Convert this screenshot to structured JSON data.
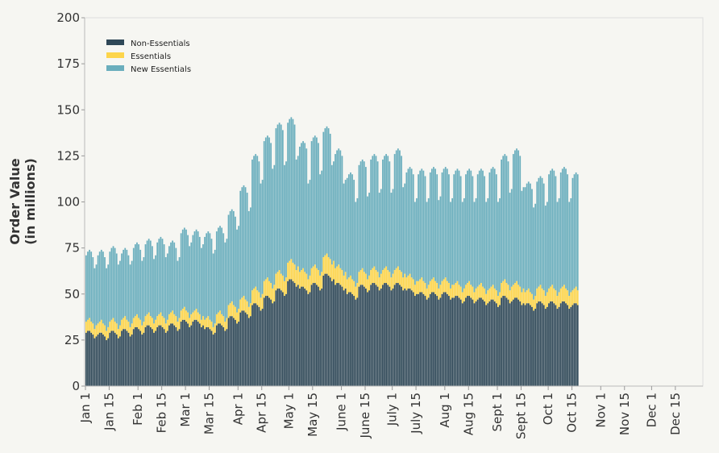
{
  "chart_data": {
    "type": "bar",
    "stacked": true,
    "title": "",
    "xlabel": "",
    "ylabel": [
      "Order Value",
      "(in millions)"
    ],
    "ylim": [
      0,
      200
    ],
    "yticks": [
      0,
      25,
      50,
      75,
      100,
      125,
      150,
      175,
      200
    ],
    "x_start": "Jan 1",
    "x_end": "Dec 31",
    "xticks": [
      {
        "label": "Jan 1",
        "day": 1
      },
      {
        "label": "Jan 15",
        "day": 15
      },
      {
        "label": "Feb 1",
        "day": 32
      },
      {
        "label": "Feb 15",
        "day": 46
      },
      {
        "label": "Mar 1",
        "day": 60
      },
      {
        "label": "Mar 15",
        "day": 74
      },
      {
        "label": "Apr 1",
        "day": 91
      },
      {
        "label": "Apr 15",
        "day": 105
      },
      {
        "label": "May 1",
        "day": 121
      },
      {
        "label": "May 15",
        "day": 135
      },
      {
        "label": "June 1",
        "day": 152
      },
      {
        "label": "June 15",
        "day": 166
      },
      {
        "label": "July 1",
        "day": 182
      },
      {
        "label": "July 15",
        "day": 196
      },
      {
        "label": "Aug 1",
        "day": 213
      },
      {
        "label": "Aug 15",
        "day": 227
      },
      {
        "label": "Sept 1",
        "day": 244
      },
      {
        "label": "Sept 15",
        "day": 258
      },
      {
        "label": "Oct 1",
        "day": 274
      },
      {
        "label": "Oct 15",
        "day": 288
      },
      {
        "label": "Nov 1",
        "day": 305
      },
      {
        "label": "Nov 15",
        "day": 319
      },
      {
        "label": "Dec 1",
        "day": 335
      },
      {
        "label": "Dec 15",
        "day": 349
      }
    ],
    "grid": false,
    "legend_placement": "top-left",
    "series": [
      {
        "name": "Non-Essentials",
        "color": "#2f4858",
        "values": [
          29,
          30,
          30,
          29,
          28,
          26,
          27,
          28,
          29,
          29,
          28,
          27,
          25,
          26,
          29,
          30,
          30,
          29,
          28,
          26,
          27,
          30,
          31,
          31,
          30,
          29,
          27,
          28,
          31,
          32,
          32,
          31,
          30,
          28,
          29,
          32,
          33,
          33,
          32,
          31,
          29,
          30,
          32,
          33,
          33,
          32,
          31,
          29,
          30,
          33,
          34,
          34,
          33,
          32,
          30,
          31,
          35,
          36,
          36,
          35,
          34,
          32,
          33,
          35,
          36,
          36,
          35,
          34,
          32,
          33,
          31,
          32,
          32,
          31,
          30,
          28,
          29,
          33,
          34,
          34,
          33,
          32,
          30,
          31,
          37,
          38,
          38,
          37,
          36,
          34,
          35,
          40,
          41,
          41,
          40,
          39,
          37,
          38,
          44,
          45,
          45,
          44,
          43,
          41,
          42,
          48,
          49,
          49,
          48,
          47,
          45,
          46,
          52,
          53,
          53,
          52,
          51,
          49,
          50,
          57,
          58,
          58,
          57,
          56,
          54,
          55,
          53,
          54,
          54,
          53,
          52,
          50,
          51,
          55,
          56,
          56,
          55,
          54,
          52,
          53,
          60,
          61,
          61,
          60,
          59,
          57,
          58,
          55,
          56,
          56,
          55,
          54,
          52,
          53,
          50,
          51,
          51,
          50,
          49,
          47,
          48,
          54,
          55,
          55,
          54,
          53,
          51,
          52,
          55,
          56,
          56,
          55,
          54,
          52,
          53,
          55,
          56,
          56,
          55,
          54,
          52,
          53,
          55,
          56,
          56,
          55,
          54,
          52,
          53,
          52,
          53,
          53,
          52,
          51,
          49,
          50,
          50,
          51,
          51,
          50,
          49,
          47,
          48,
          50,
          51,
          51,
          50,
          49,
          47,
          48,
          50,
          51,
          51,
          50,
          49,
          47,
          48,
          48,
          49,
          49,
          48,
          47,
          45,
          46,
          48,
          49,
          49,
          48,
          47,
          45,
          46,
          47,
          48,
          48,
          47,
          46,
          44,
          45,
          46,
          47,
          47,
          46,
          45,
          43,
          44,
          48,
          49,
          49,
          48,
          47,
          45,
          46,
          47,
          48,
          48,
          47,
          46,
          44,
          45,
          44,
          45,
          45,
          44,
          43,
          41,
          42,
          45,
          46,
          46,
          45,
          44,
          42,
          43,
          45,
          46,
          46,
          45,
          44,
          42,
          43,
          45,
          46,
          46,
          45,
          44,
          42,
          43,
          44,
          45,
          45,
          44
        ]
      },
      {
        "name": "Essentials",
        "color": "#fdd54b",
        "values": [
          6,
          6,
          7,
          6,
          6,
          5,
          6,
          6,
          6,
          7,
          6,
          6,
          5,
          6,
          6,
          6,
          7,
          6,
          6,
          5,
          6,
          6,
          6,
          7,
          6,
          6,
          5,
          6,
          6,
          6,
          7,
          6,
          6,
          5,
          6,
          6,
          6,
          7,
          6,
          6,
          5,
          6,
          6,
          6,
          7,
          6,
          6,
          5,
          6,
          6,
          6,
          7,
          6,
          6,
          5,
          6,
          6,
          6,
          7,
          6,
          6,
          5,
          6,
          5,
          5,
          6,
          5,
          5,
          4,
          5,
          5,
          5,
          6,
          5,
          5,
          4,
          5,
          6,
          6,
          7,
          6,
          6,
          5,
          6,
          7,
          7,
          8,
          7,
          7,
          6,
          7,
          7,
          7,
          8,
          7,
          7,
          6,
          7,
          8,
          8,
          9,
          8,
          8,
          7,
          8,
          9,
          9,
          10,
          9,
          9,
          8,
          9,
          9,
          9,
          10,
          9,
          9,
          8,
          9,
          10,
          10,
          11,
          10,
          10,
          9,
          10,
          9,
          9,
          10,
          9,
          9,
          8,
          9,
          9,
          9,
          10,
          9,
          9,
          8,
          9,
          10,
          10,
          11,
          10,
          10,
          9,
          10,
          9,
          9,
          10,
          9,
          9,
          8,
          9,
          8,
          8,
          9,
          8,
          8,
          7,
          8,
          8,
          8,
          9,
          8,
          8,
          7,
          8,
          8,
          8,
          9,
          8,
          8,
          7,
          8,
          8,
          8,
          9,
          8,
          8,
          7,
          8,
          8,
          8,
          9,
          8,
          8,
          7,
          8,
          7,
          7,
          8,
          7,
          7,
          6,
          7,
          7,
          7,
          8,
          7,
          7,
          6,
          7,
          7,
          7,
          8,
          7,
          7,
          6,
          7,
          7,
          7,
          8,
          7,
          7,
          6,
          7,
          7,
          7,
          8,
          7,
          7,
          6,
          7,
          7,
          7,
          8,
          7,
          7,
          6,
          7,
          7,
          7,
          8,
          7,
          7,
          6,
          7,
          7,
          7,
          8,
          7,
          7,
          6,
          7,
          8,
          8,
          9,
          8,
          8,
          7,
          8,
          8,
          8,
          9,
          8,
          8,
          7,
          8,
          7,
          7,
          8,
          7,
          7,
          6,
          7,
          8,
          8,
          9,
          8,
          8,
          7,
          8,
          8,
          8,
          9,
          8,
          8,
          7,
          8,
          8,
          8,
          9,
          8,
          8,
          7,
          8,
          8,
          8,
          9,
          8
        ]
      },
      {
        "name": "New Essentials",
        "color": "#6aaebd",
        "values": [
          36,
          37,
          37,
          38,
          36,
          33,
          33,
          37,
          38,
          38,
          39,
          37,
          34,
          34,
          38,
          39,
          39,
          40,
          38,
          35,
          35,
          36,
          37,
          37,
          38,
          36,
          34,
          34,
          38,
          39,
          39,
          40,
          38,
          35,
          35,
          39,
          40,
          40,
          41,
          39,
          35,
          35,
          40,
          41,
          41,
          42,
          40,
          36,
          36,
          37,
          38,
          38,
          39,
          37,
          33,
          33,
          42,
          43,
          43,
          44,
          42,
          39,
          39,
          42,
          43,
          43,
          44,
          42,
          39,
          39,
          45,
          46,
          46,
          47,
          45,
          40,
          40,
          45,
          46,
          46,
          47,
          45,
          43,
          43,
          49,
          50,
          50,
          51,
          49,
          45,
          45,
          59,
          60,
          60,
          61,
          59,
          52,
          52,
          71,
          72,
          72,
          73,
          71,
          62,
          62,
          76,
          77,
          77,
          78,
          76,
          65,
          65,
          79,
          80,
          80,
          81,
          79,
          63,
          63,
          76,
          77,
          77,
          78,
          76,
          60,
          60,
          68,
          69,
          69,
          70,
          68,
          52,
          52,
          69,
          70,
          70,
          71,
          69,
          55,
          55,
          68,
          69,
          69,
          70,
          68,
          54,
          54,
          62,
          63,
          63,
          64,
          62,
          50,
          50,
          55,
          56,
          56,
          57,
          55,
          46,
          46,
          58,
          59,
          59,
          60,
          58,
          45,
          45,
          60,
          61,
          61,
          62,
          60,
          46,
          46,
          60,
          61,
          61,
          62,
          60,
          46,
          46,
          63,
          64,
          64,
          65,
          63,
          49,
          49,
          57,
          58,
          58,
          59,
          57,
          45,
          45,
          58,
          59,
          59,
          60,
          58,
          47,
          47,
          59,
          60,
          60,
          61,
          59,
          48,
          48,
          59,
          60,
          60,
          61,
          59,
          47,
          47,
          60,
          61,
          61,
          62,
          60,
          49,
          49,
          60,
          61,
          61,
          62,
          60,
          49,
          49,
          61,
          62,
          62,
          63,
          61,
          50,
          50,
          63,
          64,
          64,
          65,
          63,
          51,
          51,
          67,
          68,
          68,
          69,
          67,
          53,
          53,
          71,
          72,
          72,
          73,
          71,
          55,
          55,
          57,
          58,
          58,
          59,
          57,
          50,
          50,
          58,
          59,
          59,
          60,
          58,
          49,
          49,
          62,
          63,
          63,
          64,
          62,
          51,
          51,
          63,
          64,
          64,
          65,
          63,
          51,
          51,
          61,
          62,
          62,
          63
        ]
      }
    ]
  }
}
